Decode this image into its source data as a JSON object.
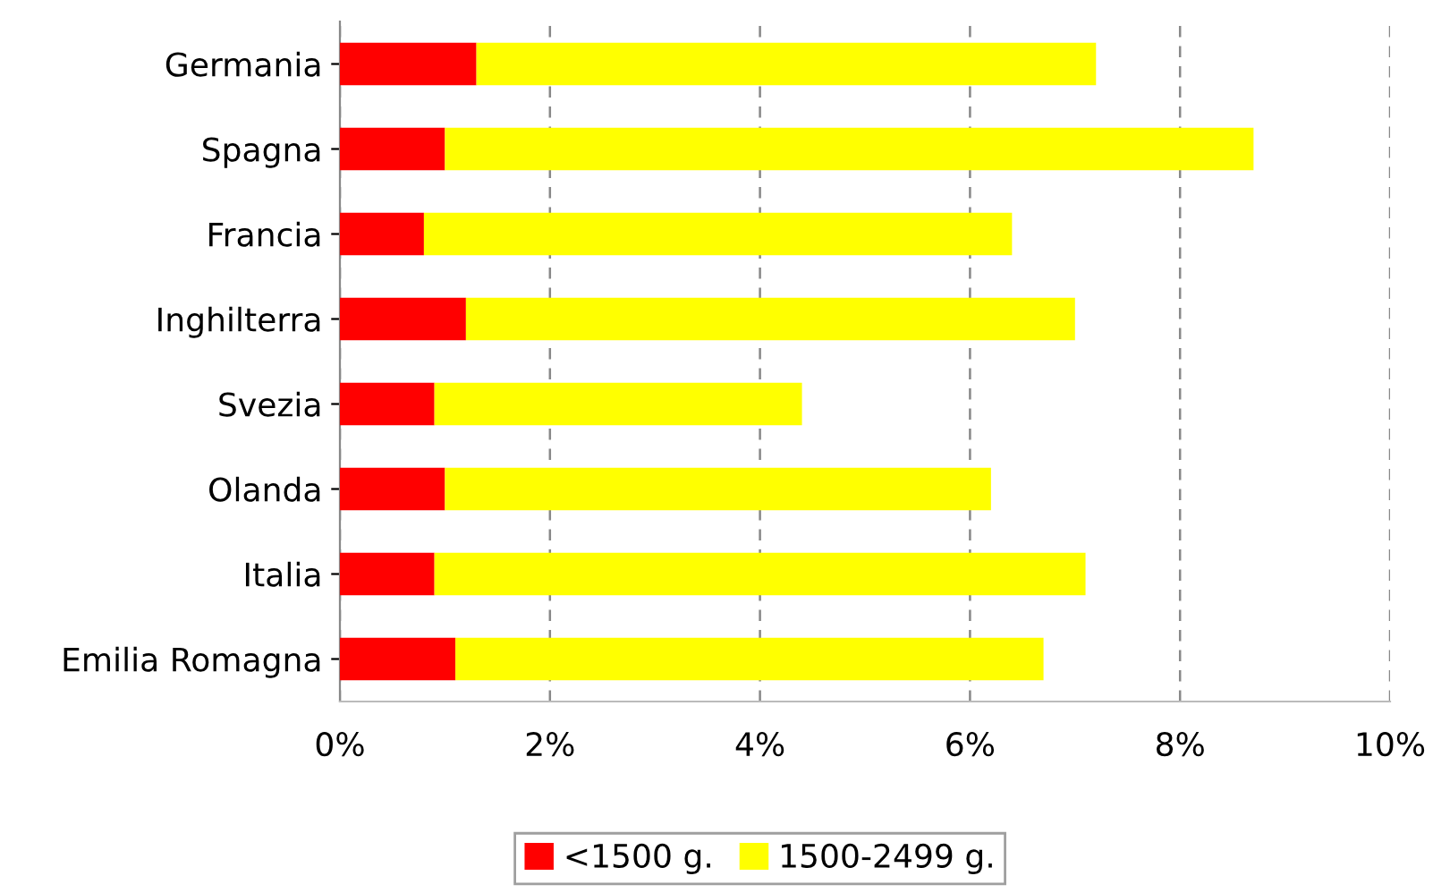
{
  "chart_data": {
    "type": "bar",
    "orientation": "horizontal",
    "stacked": true,
    "categories": [
      "Germania",
      "Spagna",
      "Francia",
      "Inghilterra",
      "Svezia",
      "Olanda",
      "Italia",
      "Emilia Romagna"
    ],
    "series": [
      {
        "name": "<1500 g.",
        "color": "#ff0000",
        "values": [
          1.3,
          1.0,
          0.8,
          1.2,
          0.9,
          1.0,
          0.9,
          1.1
        ]
      },
      {
        "name": "1500-2499 g.",
        "color": "#ffff00",
        "values": [
          5.9,
          7.7,
          5.6,
          5.8,
          3.5,
          5.2,
          6.2,
          5.6
        ]
      }
    ],
    "xlim": [
      0,
      10
    ],
    "xticks": [
      {
        "value": 0,
        "label": "0%"
      },
      {
        "value": 2,
        "label": "2%"
      },
      {
        "value": 4,
        "label": "4%"
      },
      {
        "value": 6,
        "label": "6%"
      },
      {
        "value": 8,
        "label": "8%"
      },
      {
        "value": 10,
        "label": "10%"
      }
    ],
    "grid": "x",
    "legend": "bottom"
  }
}
